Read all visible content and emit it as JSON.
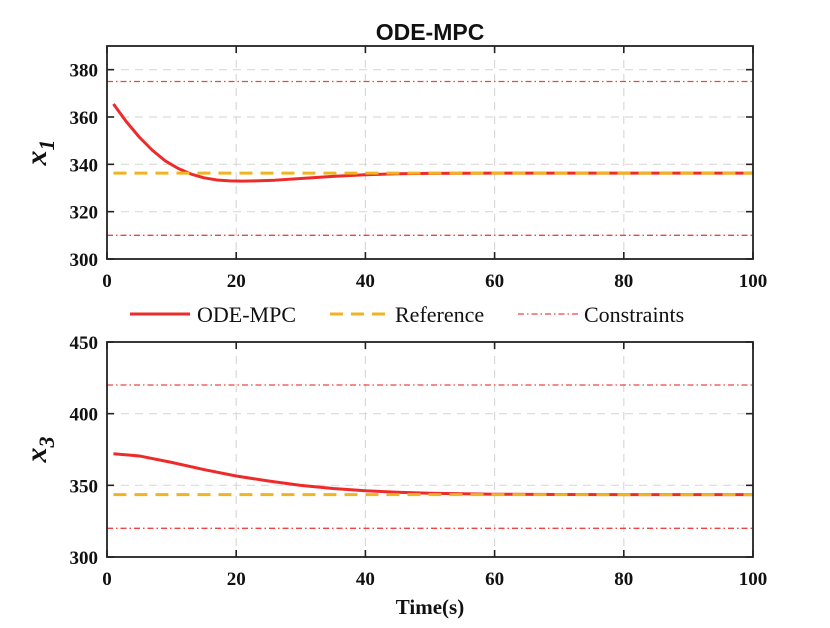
{
  "title": "ODE-MPC",
  "xlabel": "Time(s)",
  "colors": {
    "response": "#ee2b2b",
    "reference": "#f0b323",
    "constraints": "#ee4444",
    "grid": "#d9d9d9"
  },
  "legend": [
    "ODE-MPC",
    "Reference",
    "Constraints"
  ],
  "chart_data": [
    {
      "type": "line",
      "name": "x1",
      "ylabel": "x",
      "ylabel_sub": "1",
      "xlim": [
        0,
        100
      ],
      "ylim": [
        300,
        390
      ],
      "xticks": [
        0,
        20,
        40,
        60,
        80,
        100
      ],
      "yticks": [
        300,
        320,
        340,
        360,
        380
      ],
      "grid": true,
      "series": [
        {
          "name": "ODE-MPC",
          "style": "solid",
          "x": [
            1,
            3,
            5,
            7,
            9,
            11,
            13,
            15,
            17,
            19,
            21,
            23,
            26,
            30,
            35,
            40,
            45,
            50,
            60,
            70,
            80,
            90,
            100
          ],
          "y": [
            365.5,
            358,
            351.5,
            346,
            341.5,
            338.3,
            335.9,
            334.3,
            333.4,
            333,
            332.9,
            333,
            333.3,
            334,
            334.9,
            335.6,
            336,
            336.2,
            336.3,
            336.3,
            336.3,
            336.3,
            336.3
          ]
        },
        {
          "name": "Reference",
          "style": "dashed",
          "x": [
            1,
            100
          ],
          "y": [
            336.3,
            336.3
          ]
        },
        {
          "name": "Constraint upper",
          "style": "dashdot",
          "x": [
            0,
            100
          ],
          "y": [
            375,
            375
          ]
        },
        {
          "name": "Constraint lower",
          "style": "dashdot",
          "x": [
            0,
            100
          ],
          "y": [
            310,
            310
          ]
        }
      ]
    },
    {
      "type": "line",
      "name": "x3",
      "ylabel": "x",
      "ylabel_sub": "3",
      "xlim": [
        0,
        100
      ],
      "ylim": [
        300,
        450
      ],
      "xticks": [
        0,
        20,
        40,
        60,
        80,
        100
      ],
      "yticks": [
        300,
        350,
        400,
        450
      ],
      "grid": true,
      "series": [
        {
          "name": "ODE-MPC",
          "style": "solid",
          "x": [
            1,
            5,
            10,
            15,
            20,
            25,
            30,
            35,
            40,
            45,
            50,
            55,
            60,
            70,
            80,
            90,
            100
          ],
          "y": [
            372,
            370.5,
            366,
            361,
            356.5,
            353,
            350,
            347.8,
            346.2,
            345.2,
            344.5,
            344.1,
            343.8,
            343.6,
            343.5,
            343.5,
            343.5
          ]
        },
        {
          "name": "Reference",
          "style": "dashed",
          "x": [
            1,
            100
          ],
          "y": [
            343.5,
            343.5
          ]
        },
        {
          "name": "Constraint upper",
          "style": "dashdot",
          "x": [
            0,
            100
          ],
          "y": [
            420,
            420
          ]
        },
        {
          "name": "Constraint lower",
          "style": "dashdot",
          "x": [
            0,
            100
          ],
          "y": [
            320,
            320
          ]
        }
      ]
    }
  ]
}
